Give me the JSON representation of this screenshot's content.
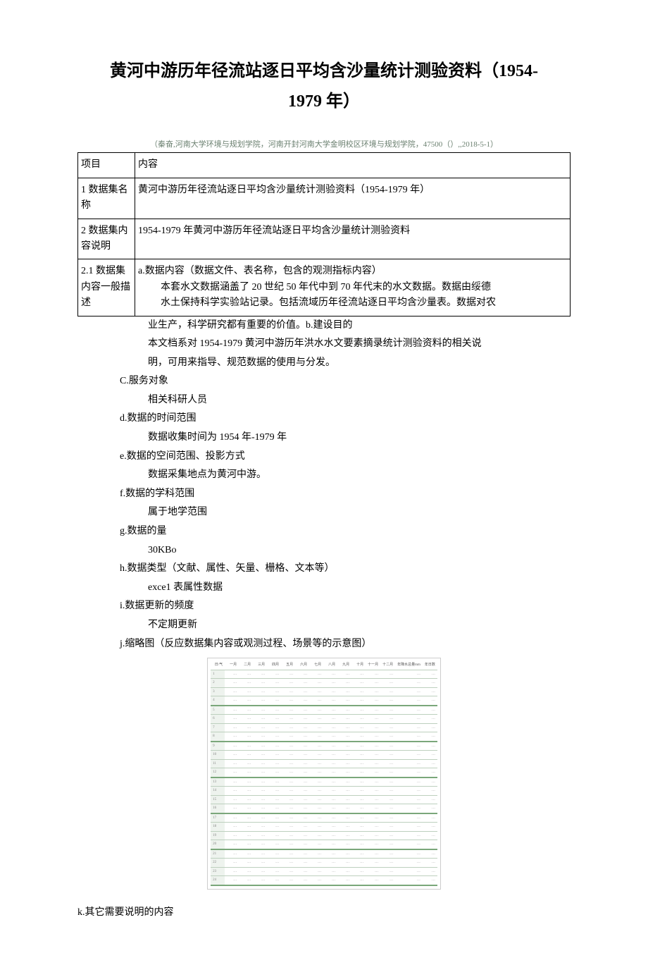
{
  "title_line1": "黄河中游历年径流站逐日平均含沙量统计测验资料（1954-",
  "title_line2": "1979 年）",
  "byline": "（秦奋,河南大学环境与规划学院，河南开封河南大学金明校区环境与规划学院，47500（）,,2018-5-1）",
  "table": {
    "header_col1": "项目",
    "header_col2": "内容",
    "row1_label": "1 数据集名称",
    "row1_value": "黄河中游历年径流站逐日平均含沙量统计测验资料（1954-1979 年）",
    "row2_label": "2 数据集内容说明",
    "row2_value": "1954-1979 年黄河中游历年径流站逐日平均含沙量统计测验资料",
    "row3_label": "2.1 数据集内容一般描述",
    "row3_line_a": "a.数据内容（数据文件、表名称，包含的观测指标内容）",
    "row3_line_a_body1": "本套水文数据涵盖了 20 世纪 50 年代中到 70 年代末的水文数据。数据由绥德",
    "row3_line_a_body2": "水土保持科学实验站记录。包括流域历年径流站逐日平均含沙量表。数据对农"
  },
  "body": {
    "a_body3": "业生产，科学研究都有重要的价值。b.建设目的",
    "b_body1": "本文档系对 1954-1979 黄河中游历年洪水水文要素摘录统计测验资料的相关说",
    "b_body2": "明，可用来指导、规范数据的使用与分发。",
    "c_label": "C.服务对象",
    "c_body": "相关科研人员",
    "d_label": "d.数据的时间范围",
    "d_body": "数据收集时间为 1954 年-1979 年",
    "e_label": "e.数据的空间范围、投影方式",
    "e_body": "数据采集地点为黄河中游。",
    "f_label": "f.数据的学科范围",
    "f_body": "属于地学范围",
    "g_label": "g.数据的量",
    "g_body": "30KBo",
    "h_label": "h.数据类型（文献、属性、矢量、栅格、文本等）",
    "h_body": "exce1 表属性数据",
    "i_label": "i.数据更新的频度",
    "i_body": "不定期更新",
    "j_label": "j.缩略图（反应数据集内容或观测过程、场景等的示意图）",
    "k_label": "k.其它需要说明的内容"
  },
  "thumb": {
    "headers": [
      "日\\气",
      "一月",
      "二月",
      "三月",
      "四月",
      "五月",
      "六月",
      "七月",
      "八月",
      "九月",
      "十月",
      "十一月",
      "十二月",
      "年降水总量mm",
      "年日数"
    ],
    "rows_count": 24,
    "cols_count": 15,
    "cell_placeholder": "…",
    "row_first_values": [
      "1",
      "2",
      "3",
      "4",
      "5",
      "6",
      "7",
      "8",
      "9",
      "10",
      "11",
      "12",
      "13",
      "14",
      "15",
      "16",
      "17",
      "18",
      "19",
      "20",
      "21",
      "22",
      "23",
      "24"
    ],
    "border_color": "#bdd0be",
    "accent_row_color": "#7aa77a",
    "firstcol_bg": "#eef3ee"
  },
  "colors": {
    "text": "#000000",
    "byline": "#6b8070",
    "background": "#ffffff"
  }
}
